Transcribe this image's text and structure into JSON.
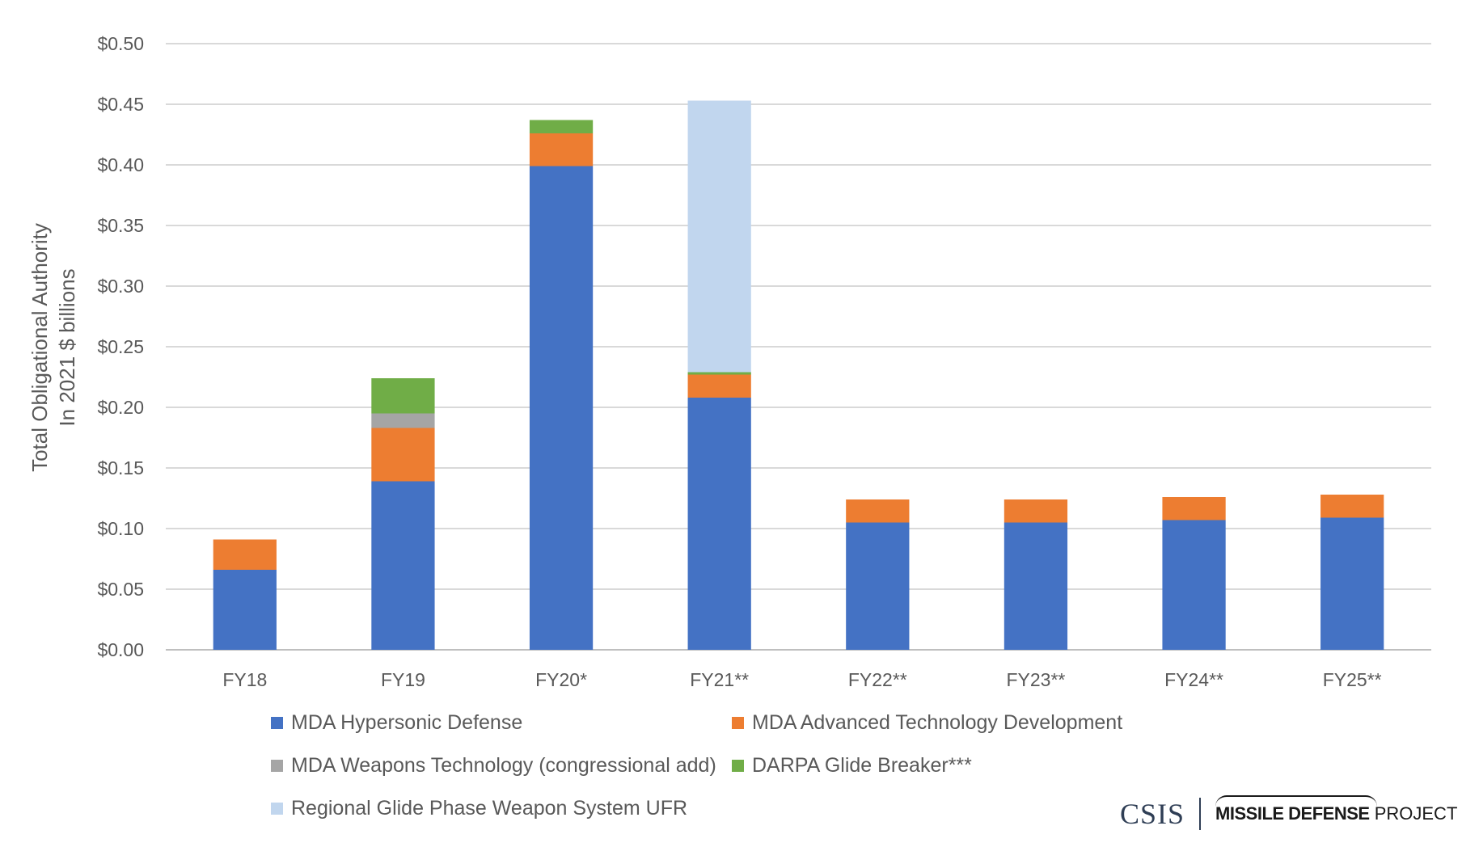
{
  "chart_data": {
    "type": "bar",
    "stacked": true,
    "categories": [
      "FY18",
      "FY19",
      "FY20*",
      "FY21**",
      "FY22**",
      "FY23**",
      "FY24**",
      "FY25**"
    ],
    "ylabel": [
      "Total Obligational Authority",
      "In 2021 $ billions"
    ],
    "ylim": [
      0,
      0.5
    ],
    "yticks": [
      "$0.00",
      "$0.05",
      "$0.10",
      "$0.15",
      "$0.20",
      "$0.25",
      "$0.30",
      "$0.35",
      "$0.40",
      "$0.45",
      "$0.50"
    ],
    "grid": "horizontal",
    "legend_position": "bottom",
    "series": [
      {
        "name": "MDA Hypersonic Defense",
        "color": "#4472c4",
        "values": [
          0.066,
          0.139,
          0.399,
          0.208,
          0.105,
          0.105,
          0.107,
          0.109
        ]
      },
      {
        "name": "MDA Advanced Technology Development",
        "color": "#ed7d31",
        "values": [
          0.025,
          0.044,
          0.027,
          0.019,
          0.019,
          0.019,
          0.019,
          0.019
        ]
      },
      {
        "name": "MDA Weapons Technology (congressional add)",
        "color": "#a5a5a5",
        "values": [
          0,
          0.012,
          0,
          0,
          0,
          0,
          0,
          0
        ]
      },
      {
        "name": "DARPA Glide Breaker***",
        "color": "#70ad47",
        "values": [
          0,
          0.029,
          0.011,
          0.002,
          0,
          0,
          0,
          0
        ]
      },
      {
        "name": "Regional Glide Phase Weapon System UFR",
        "color": "#c1d6ee",
        "values": [
          0,
          0,
          0,
          0.224,
          0,
          0,
          0,
          0
        ]
      }
    ]
  },
  "branding": {
    "org": "CSIS",
    "project_bold": "MISSILE DEFENSE",
    "project_rest": " PROJECT"
  }
}
